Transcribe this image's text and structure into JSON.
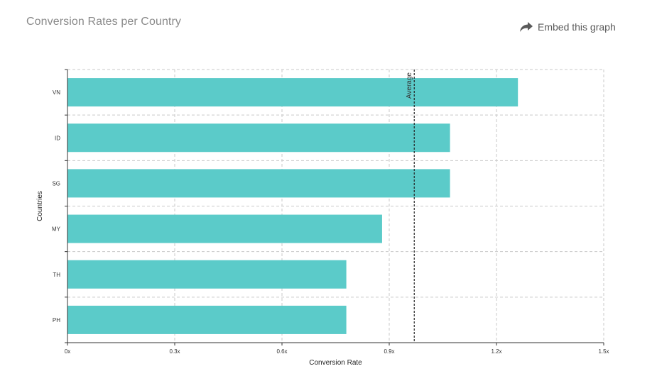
{
  "header": {
    "title": "Conversion Rates per Country",
    "embed_label": "Embed this graph",
    "embed_icon": "share-arrow-icon"
  },
  "chart_data": {
    "type": "bar",
    "orientation": "horizontal",
    "categories": [
      "VN",
      "ID",
      "SG",
      "MY",
      "TH",
      "PH"
    ],
    "values": [
      1.26,
      1.07,
      1.07,
      0.88,
      0.78,
      0.78
    ],
    "xlabel": "Conversion Rate",
    "ylabel": "Countries",
    "xlim": [
      0,
      1.5
    ],
    "xticks": [
      0,
      0.3,
      0.6,
      0.9,
      1.2,
      1.5
    ],
    "xtick_labels": [
      "0x",
      "0.3x",
      "0.6x",
      "0.9x",
      "1.2x",
      "1.5x"
    ],
    "grid": true,
    "bar_color": "#5bcbc9",
    "reference_line": {
      "label": "Average",
      "value": 0.97,
      "style": "dashed"
    }
  }
}
